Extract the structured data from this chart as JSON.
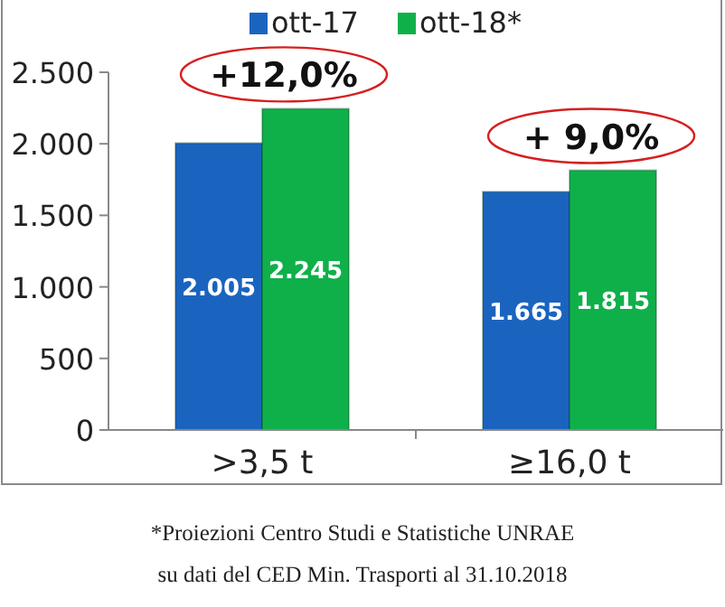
{
  "chart_data": {
    "type": "bar",
    "categories": [
      ">3,5 t",
      "≥16,0 t"
    ],
    "series": [
      {
        "name": "ott-17",
        "color": "#1a64c0",
        "values": [
          2005,
          1665
        ],
        "value_labels": [
          "2.005",
          "1.665"
        ]
      },
      {
        "name": "ott-18*",
        "color": "#0fb04a",
        "values": [
          2245,
          1815
        ],
        "value_labels": [
          "2.245",
          "1.815"
        ]
      }
    ],
    "ylim": [
      0,
      2500
    ],
    "yticks": [
      0,
      500,
      {
        "value": 1000,
        "label": "1.000"
      },
      {
        "value": 1500,
        "label": "1.500"
      },
      {
        "value": 2000,
        "label": "2.000"
      },
      {
        "value": 2500,
        "label": "2.500"
      }
    ],
    "grid": false,
    "legend": "top",
    "annotations": [
      "+12,0%",
      "+ 9,0%",
      "*Proiezioni Centro Studi e Statistiche UNRAE",
      "su dati del CED Min. Trasporti al 31.10.2018"
    ]
  }
}
